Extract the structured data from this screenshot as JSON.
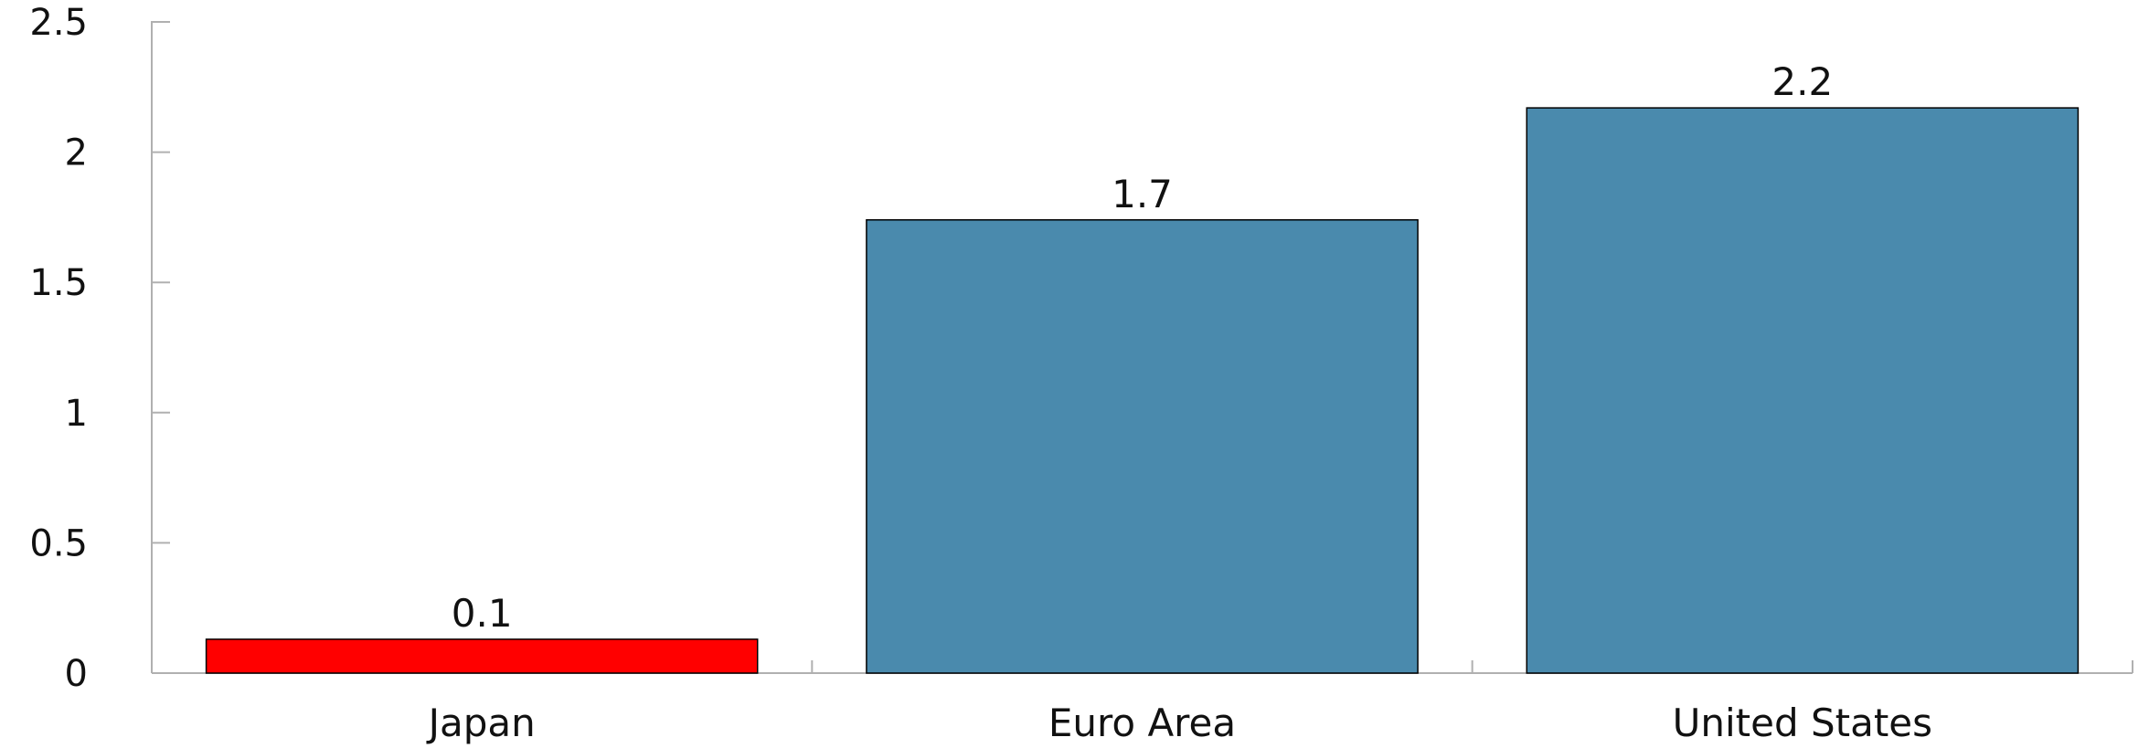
{
  "chart_data": {
    "type": "bar",
    "title": "",
    "xlabel": "",
    "ylabel": "",
    "categories": [
      "Japan",
      "Euro Area",
      "United States"
    ],
    "values": [
      0.13,
      1.74,
      2.17
    ],
    "value_labels": [
      "0.1",
      "1.7",
      "2.2"
    ],
    "bar_colors": [
      "#ff0000",
      "#4a8aad",
      "#4a8aad"
    ],
    "ylim": [
      0,
      2.5
    ],
    "yticks": [
      0,
      0.5,
      1,
      1.5,
      2,
      2.5
    ],
    "ytick_labels": [
      "0",
      "0.5",
      "1",
      "1.5",
      "2",
      "2.5"
    ],
    "grid": false,
    "legend": "none",
    "colors": {
      "axis": "#b0b0b0",
      "bar_edge": "#000000"
    }
  }
}
